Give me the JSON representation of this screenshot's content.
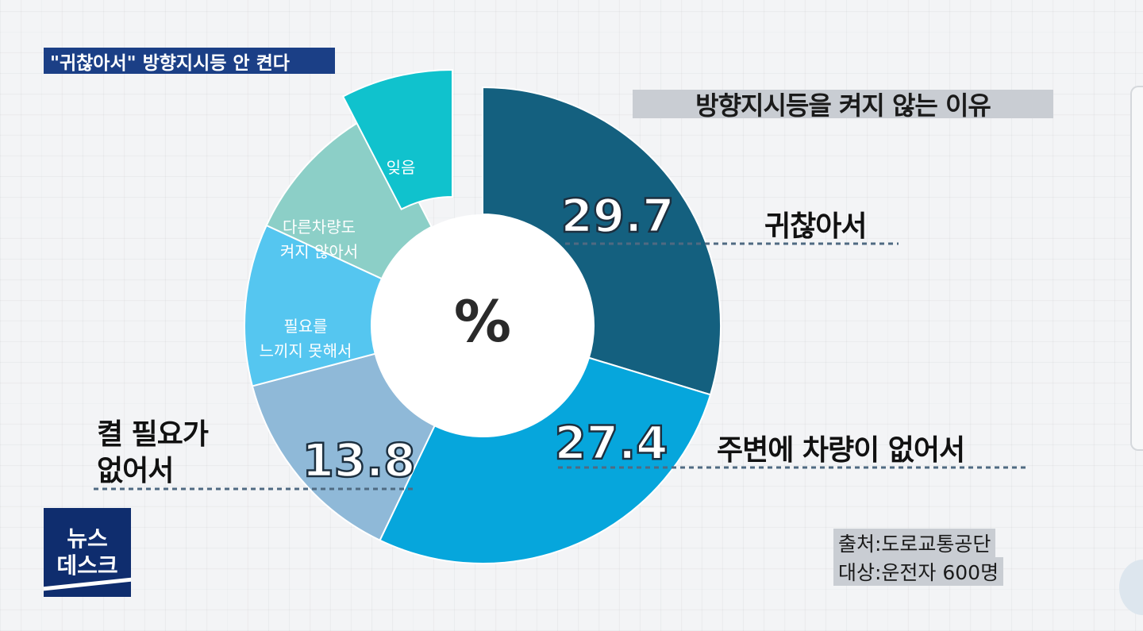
{
  "headline": "\"귀찮아서\" 방향지시등 안 켠다",
  "chart_data": {
    "type": "pie",
    "title": "방향지시등을 켜지 않는 이유",
    "center_label": "%",
    "slices": [
      {
        "label": "귀찮아서",
        "value": 29.7,
        "color": "#14607f",
        "value_label": "29.7"
      },
      {
        "label": "주변에 차량이 없어서",
        "value": 27.4,
        "color": "#06a6dc",
        "value_label": "27.4"
      },
      {
        "label": "켤 필요가 없어서",
        "value": 13.8,
        "color": "#8fb9d8",
        "value_label": "13.8"
      },
      {
        "label": "필요를 느끼지 못해서",
        "value": 11.0,
        "color": "#55c6f0"
      },
      {
        "label": "다른차량도 켜지 않아서",
        "value": 10.5,
        "color": "#8ccfc7"
      },
      {
        "label": "잊음",
        "value": 7.6,
        "color": "#10c2cd"
      }
    ]
  },
  "labels": {
    "annoying": "귀찮아서",
    "no_cars": "주변에 차량이 없어서",
    "no_need_1": "켤 필요가",
    "no_need_2": "없어서",
    "no_feel_1": "필요를",
    "no_feel_2": "느끼지 못해서",
    "others_1": "다른차량도",
    "others_2": "켜지 않아서",
    "forget": "잊음"
  },
  "source": "출처:도로교통공단",
  "subjects": "대상:운전자 600명",
  "logo": {
    "line1": "뉴스",
    "line2": "데스크"
  },
  "colors": {
    "headline_bg": "#1b3f86",
    "title_bg": "#c9cdd3",
    "logo_bg": "#0f2d6e"
  }
}
